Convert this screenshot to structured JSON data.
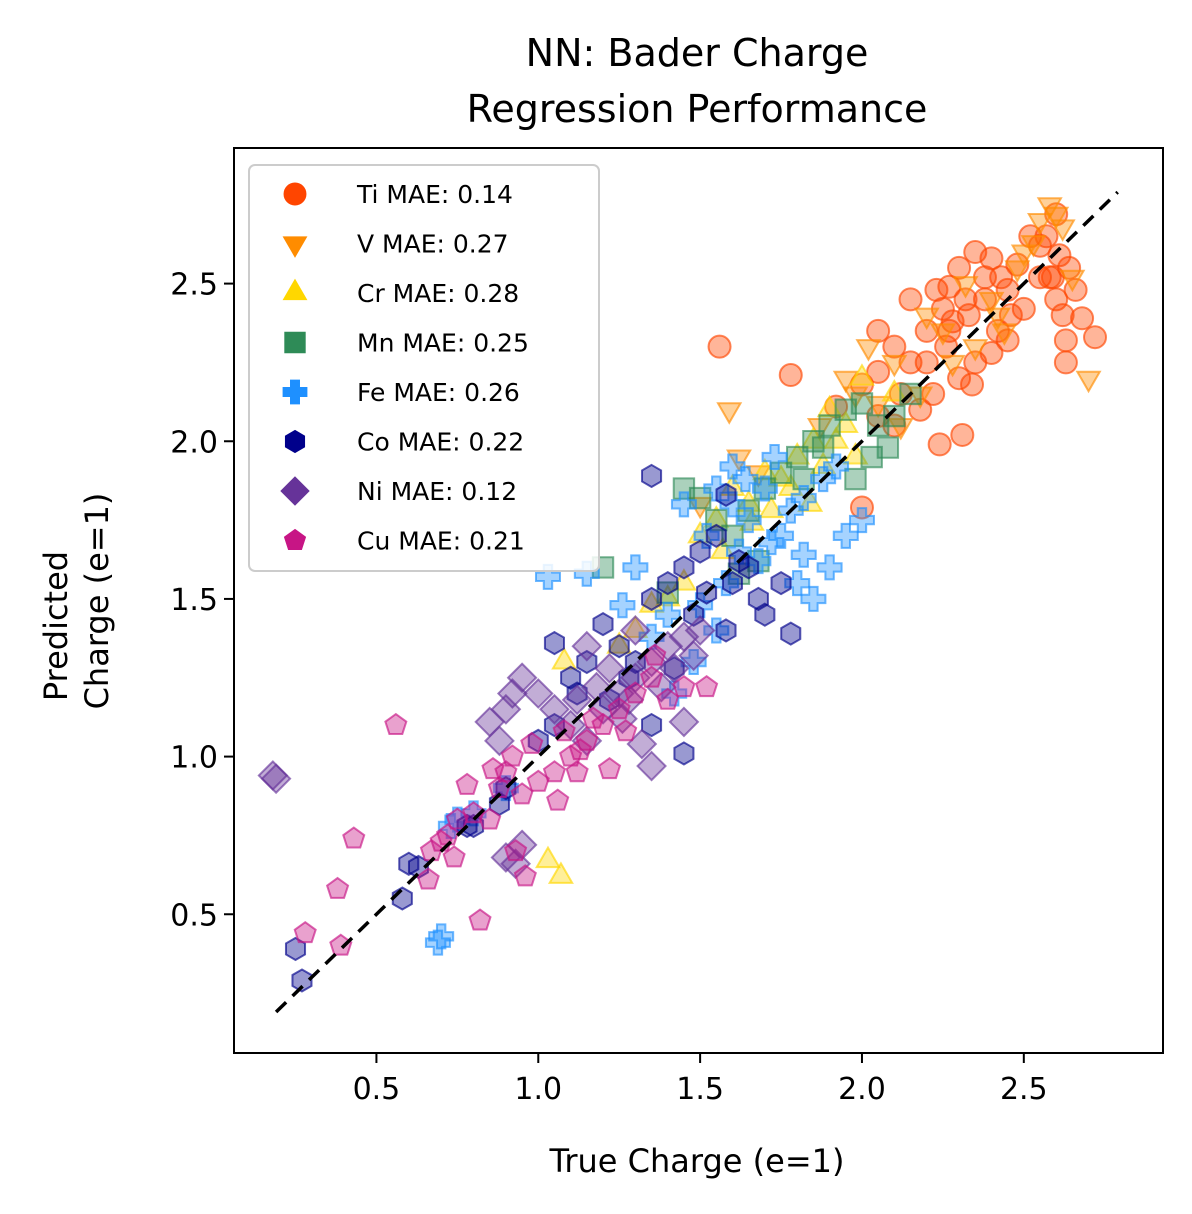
{
  "chart_data": {
    "type": "scatter",
    "title": [
      "NN: Bader Charge",
      "Regression Performance"
    ],
    "xlabel": "True Charge (e=1)",
    "ylabel": [
      "Predicted",
      "Charge (e=1)"
    ],
    "xlim": [
      0.06,
      2.93
    ],
    "ylim": [
      0.06,
      2.93
    ],
    "xticks": [
      "0.5",
      "1.0",
      "1.5",
      "2.0",
      "2.5"
    ],
    "yticks": [
      "0.5",
      "1.0",
      "1.5",
      "2.0",
      "2.5"
    ],
    "legend_position": "upper-left",
    "reference_line": {
      "style": "dashed",
      "color": "#000000",
      "from": [
        0.19,
        0.19
      ],
      "to": [
        2.79,
        2.79
      ]
    },
    "series": [
      {
        "name": "Ti MAE: 0.14",
        "marker": "circle",
        "color": "#FF4500",
        "points": [
          [
            1.56,
            2.3
          ],
          [
            1.78,
            2.21
          ],
          [
            1.92,
            2.11
          ],
          [
            2.0,
            2.18
          ],
          [
            2.05,
            2.22
          ],
          [
            2.1,
            2.3
          ],
          [
            2.15,
            2.25
          ],
          [
            2.2,
            2.35
          ],
          [
            2.23,
            2.48
          ],
          [
            2.25,
            2.42
          ],
          [
            2.28,
            2.38
          ],
          [
            2.3,
            2.55
          ],
          [
            2.32,
            2.45
          ],
          [
            2.35,
            2.6
          ],
          [
            2.38,
            2.52
          ],
          [
            2.4,
            2.58
          ],
          [
            2.42,
            2.35
          ],
          [
            2.45,
            2.48
          ],
          [
            2.48,
            2.56
          ],
          [
            2.52,
            2.65
          ],
          [
            2.55,
            2.62
          ],
          [
            2.58,
            2.52
          ],
          [
            2.6,
            2.45
          ],
          [
            2.62,
            2.4
          ],
          [
            2.63,
            2.32
          ],
          [
            2.64,
            2.55
          ],
          [
            2.66,
            2.48
          ],
          [
            2.6,
            2.72
          ],
          [
            2.57,
            2.65
          ],
          [
            2.5,
            2.42
          ],
          [
            2.45,
            2.32
          ],
          [
            2.35,
            2.25
          ],
          [
            2.3,
            2.2
          ],
          [
            2.22,
            2.15
          ],
          [
            2.18,
            2.1
          ],
          [
            2.1,
            2.05
          ],
          [
            2.05,
            2.08
          ],
          [
            2.27,
            2.35
          ],
          [
            2.33,
            2.4
          ],
          [
            2.43,
            2.52
          ],
          [
            2.38,
            2.45
          ],
          [
            2.26,
            2.3
          ],
          [
            2.2,
            2.25
          ],
          [
            2.12,
            2.15
          ],
          [
            2.31,
            2.02
          ],
          [
            2.34,
            2.18
          ],
          [
            2.27,
            2.49
          ],
          [
            2.46,
            2.4
          ],
          [
            2.55,
            2.52
          ],
          [
            2.61,
            2.59
          ],
          [
            2.24,
            1.99
          ],
          [
            2.0,
            1.79
          ],
          [
            2.72,
            2.33
          ],
          [
            2.68,
            2.39
          ],
          [
            2.63,
            2.25
          ],
          [
            2.59,
            2.52
          ],
          [
            2.4,
            2.28
          ],
          [
            2.15,
            2.45
          ],
          [
            2.05,
            2.35
          ]
        ]
      },
      {
        "name": "V MAE: 0.27",
        "marker": "triangle-down",
        "color": "#FF8C00",
        "points": [
          [
            1.59,
            2.1
          ],
          [
            1.62,
            1.95
          ],
          [
            1.68,
            1.9
          ],
          [
            1.5,
            1.8
          ],
          [
            1.87,
            2.05
          ],
          [
            1.95,
            2.2
          ],
          [
            2.02,
            2.3
          ],
          [
            2.1,
            2.25
          ],
          [
            2.2,
            2.4
          ],
          [
            2.25,
            2.35
          ],
          [
            2.32,
            2.5
          ],
          [
            2.4,
            2.45
          ],
          [
            2.48,
            2.55
          ],
          [
            2.55,
            2.7
          ],
          [
            2.58,
            2.75
          ],
          [
            2.6,
            2.72
          ],
          [
            2.62,
            2.68
          ],
          [
            2.65,
            2.52
          ],
          [
            2.7,
            2.2
          ],
          [
            2.18,
            2.15
          ],
          [
            2.28,
            2.25
          ],
          [
            2.35,
            2.3
          ],
          [
            2.42,
            2.4
          ],
          [
            2.5,
            2.6
          ],
          [
            2.12,
            2.05
          ],
          [
            2.05,
            2.12
          ],
          [
            1.98,
            2.15
          ],
          [
            2.44,
            2.35
          ],
          [
            2.53,
            2.63
          ]
        ]
      },
      {
        "name": "Cr MAE: 0.28",
        "marker": "triangle-up",
        "color": "#FFD700",
        "points": [
          [
            1.03,
            0.67
          ],
          [
            1.07,
            0.62
          ],
          [
            1.08,
            1.3
          ],
          [
            1.25,
            1.35
          ],
          [
            1.4,
            1.5
          ],
          [
            1.5,
            1.7
          ],
          [
            1.55,
            1.75
          ],
          [
            1.6,
            1.85
          ],
          [
            1.65,
            1.8
          ],
          [
            1.7,
            1.9
          ],
          [
            1.75,
            1.88
          ],
          [
            1.8,
            1.95
          ],
          [
            1.85,
            2.0
          ],
          [
            1.9,
            2.1
          ],
          [
            1.95,
            2.05
          ],
          [
            2.0,
            2.2
          ],
          [
            2.1,
            2.15
          ],
          [
            1.88,
            1.92
          ],
          [
            1.78,
            1.85
          ],
          [
            1.72,
            1.78
          ],
          [
            1.92,
            2.0
          ],
          [
            1.57,
            1.65
          ],
          [
            1.45,
            1.55
          ],
          [
            1.3,
            1.4
          ],
          [
            1.84,
            1.8
          ],
          [
            1.98,
            1.95
          ],
          [
            1.66,
            1.74
          ],
          [
            1.35,
            1.48
          ]
        ]
      },
      {
        "name": "Mn MAE: 0.25",
        "marker": "square",
        "color": "#2E8B57",
        "points": [
          [
            1.2,
            1.6
          ],
          [
            1.45,
            1.85
          ],
          [
            1.5,
            1.82
          ],
          [
            1.55,
            1.75
          ],
          [
            1.6,
            1.7
          ],
          [
            1.65,
            1.78
          ],
          [
            1.7,
            1.85
          ],
          [
            1.75,
            1.9
          ],
          [
            1.8,
            1.95
          ],
          [
            1.85,
            2.0
          ],
          [
            1.9,
            2.05
          ],
          [
            1.95,
            2.1
          ],
          [
            2.0,
            2.12
          ],
          [
            2.05,
            2.05
          ],
          [
            2.1,
            2.08
          ],
          [
            2.15,
            2.15
          ],
          [
            2.08,
            1.98
          ],
          [
            2.03,
            1.95
          ],
          [
            1.98,
            1.88
          ],
          [
            1.68,
            1.62
          ],
          [
            1.62,
            1.58
          ],
          [
            1.4,
            1.52
          ],
          [
            1.88,
            1.98
          ],
          [
            1.82,
            1.88
          ]
        ]
      },
      {
        "name": "Fe MAE: 0.26",
        "marker": "plus",
        "color": "#1E90FF",
        "points": [
          [
            0.69,
            0.41
          ],
          [
            0.7,
            0.43
          ],
          [
            0.8,
            0.82
          ],
          [
            0.73,
            0.78
          ],
          [
            0.75,
            0.8
          ],
          [
            0.9,
            0.9
          ],
          [
            1.15,
            1.58
          ],
          [
            1.03,
            1.57
          ],
          [
            1.3,
            1.6
          ],
          [
            1.45,
            1.8
          ],
          [
            1.55,
            1.85
          ],
          [
            1.6,
            1.8
          ],
          [
            1.65,
            1.75
          ],
          [
            1.7,
            1.85
          ],
          [
            1.75,
            1.7
          ],
          [
            1.8,
            1.55
          ],
          [
            1.85,
            1.5
          ],
          [
            1.9,
            1.6
          ],
          [
            1.95,
            1.7
          ],
          [
            2.0,
            1.75
          ],
          [
            1.78,
            1.78
          ],
          [
            1.72,
            1.68
          ],
          [
            1.68,
            1.62
          ],
          [
            1.62,
            1.65
          ],
          [
            1.58,
            1.55
          ],
          [
            1.5,
            1.48
          ],
          [
            1.4,
            1.45
          ],
          [
            1.35,
            1.38
          ],
          [
            1.48,
            1.3
          ],
          [
            1.42,
            1.2
          ],
          [
            1.55,
            1.4
          ],
          [
            1.88,
            1.88
          ],
          [
            1.92,
            1.92
          ],
          [
            1.82,
            1.82
          ],
          [
            1.6,
            1.92
          ],
          [
            1.52,
            1.7
          ],
          [
            1.26,
            1.48
          ],
          [
            1.73,
            1.95
          ],
          [
            1.64,
            1.88
          ],
          [
            1.82,
            1.64
          ]
        ]
      },
      {
        "name": "Co MAE: 0.22",
        "marker": "hexagon",
        "color": "#00008B",
        "points": [
          [
            0.25,
            0.39
          ],
          [
            0.27,
            0.29
          ],
          [
            0.58,
            0.55
          ],
          [
            0.6,
            0.66
          ],
          [
            0.63,
            0.65
          ],
          [
            0.78,
            0.78
          ],
          [
            0.8,
            0.78
          ],
          [
            0.88,
            0.85
          ],
          [
            0.9,
            0.9
          ],
          [
            1.0,
            1.05
          ],
          [
            1.05,
            1.1
          ],
          [
            1.1,
            1.25
          ],
          [
            1.15,
            1.3
          ],
          [
            1.2,
            1.42
          ],
          [
            1.25,
            1.35
          ],
          [
            1.3,
            1.3
          ],
          [
            1.35,
            1.89
          ],
          [
            1.35,
            1.5
          ],
          [
            1.4,
            1.55
          ],
          [
            1.45,
            1.6
          ],
          [
            1.5,
            1.65
          ],
          [
            1.55,
            1.7
          ],
          [
            1.58,
            1.83
          ],
          [
            1.6,
            1.55
          ],
          [
            1.65,
            1.6
          ],
          [
            1.68,
            1.5
          ],
          [
            1.7,
            1.45
          ],
          [
            1.75,
            1.55
          ],
          [
            1.78,
            1.39
          ],
          [
            1.45,
            1.01
          ],
          [
            1.35,
            1.1
          ],
          [
            1.05,
            1.36
          ],
          [
            1.12,
            1.2
          ],
          [
            1.22,
            1.18
          ],
          [
            1.28,
            1.25
          ],
          [
            1.48,
            1.45
          ],
          [
            1.52,
            1.52
          ],
          [
            1.62,
            1.62
          ],
          [
            1.58,
            1.4
          ],
          [
            1.42,
            1.28
          ]
        ]
      },
      {
        "name": "Ni MAE: 0.12",
        "marker": "diamond",
        "color": "#663399",
        "points": [
          [
            0.18,
            0.94
          ],
          [
            0.19,
            0.93
          ],
          [
            0.9,
            0.68
          ],
          [
            0.93,
            0.66
          ],
          [
            0.95,
            0.72
          ],
          [
            0.85,
            1.11
          ],
          [
            0.88,
            1.05
          ],
          [
            0.9,
            1.15
          ],
          [
            0.92,
            1.2
          ],
          [
            0.95,
            1.25
          ],
          [
            1.0,
            1.2
          ],
          [
            1.05,
            1.15
          ],
          [
            1.1,
            1.1
          ],
          [
            1.15,
            1.05
          ],
          [
            1.2,
            1.15
          ],
          [
            1.25,
            1.2
          ],
          [
            1.3,
            1.25
          ],
          [
            1.35,
            1.3
          ],
          [
            1.4,
            1.35
          ],
          [
            1.45,
            1.38
          ],
          [
            1.48,
            1.32
          ],
          [
            1.5,
            1.4
          ],
          [
            1.35,
            0.97
          ],
          [
            1.32,
            1.04
          ],
          [
            1.45,
            1.11
          ],
          [
            1.28,
            1.18
          ],
          [
            1.22,
            1.28
          ],
          [
            1.18,
            1.22
          ],
          [
            1.12,
            1.18
          ],
          [
            1.38,
            1.22
          ],
          [
            1.42,
            1.28
          ],
          [
            1.26,
            1.12
          ],
          [
            1.15,
            1.35
          ],
          [
            1.3,
            1.4
          ]
        ]
      },
      {
        "name": "Cu MAE: 0.21",
        "marker": "pentagon",
        "color": "#C71585",
        "points": [
          [
            0.28,
            0.44
          ],
          [
            0.39,
            0.4
          ],
          [
            0.38,
            0.58
          ],
          [
            0.43,
            0.74
          ],
          [
            0.56,
            1.1
          ],
          [
            0.66,
            0.61
          ],
          [
            0.67,
            0.7
          ],
          [
            0.7,
            0.73
          ],
          [
            0.72,
            0.75
          ],
          [
            0.75,
            0.8
          ],
          [
            0.8,
            0.82
          ],
          [
            0.82,
            0.48
          ],
          [
            0.85,
            0.8
          ],
          [
            0.88,
            0.9
          ],
          [
            0.9,
            0.95
          ],
          [
            0.92,
            1.0
          ],
          [
            0.95,
            0.88
          ],
          [
            1.0,
            0.92
          ],
          [
            1.05,
            0.95
          ],
          [
            1.1,
            1.0
          ],
          [
            1.12,
            0.95
          ],
          [
            1.15,
            1.05
          ],
          [
            1.2,
            1.1
          ],
          [
            1.25,
            1.15
          ],
          [
            1.3,
            1.2
          ],
          [
            1.35,
            1.25
          ],
          [
            1.4,
            1.18
          ],
          [
            1.45,
            1.22
          ],
          [
            1.52,
            1.22
          ],
          [
            0.93,
            0.7
          ],
          [
            0.96,
            0.62
          ],
          [
            1.06,
            0.86
          ],
          [
            1.13,
            1.02
          ],
          [
            1.22,
            0.96
          ],
          [
            0.78,
            0.91
          ],
          [
            0.86,
            0.96
          ],
          [
            0.98,
            1.04
          ],
          [
            1.08,
            1.08
          ],
          [
            1.17,
            1.12
          ],
          [
            1.27,
            1.08
          ],
          [
            1.36,
            1.32
          ],
          [
            0.74,
            0.68
          ]
        ]
      }
    ]
  }
}
